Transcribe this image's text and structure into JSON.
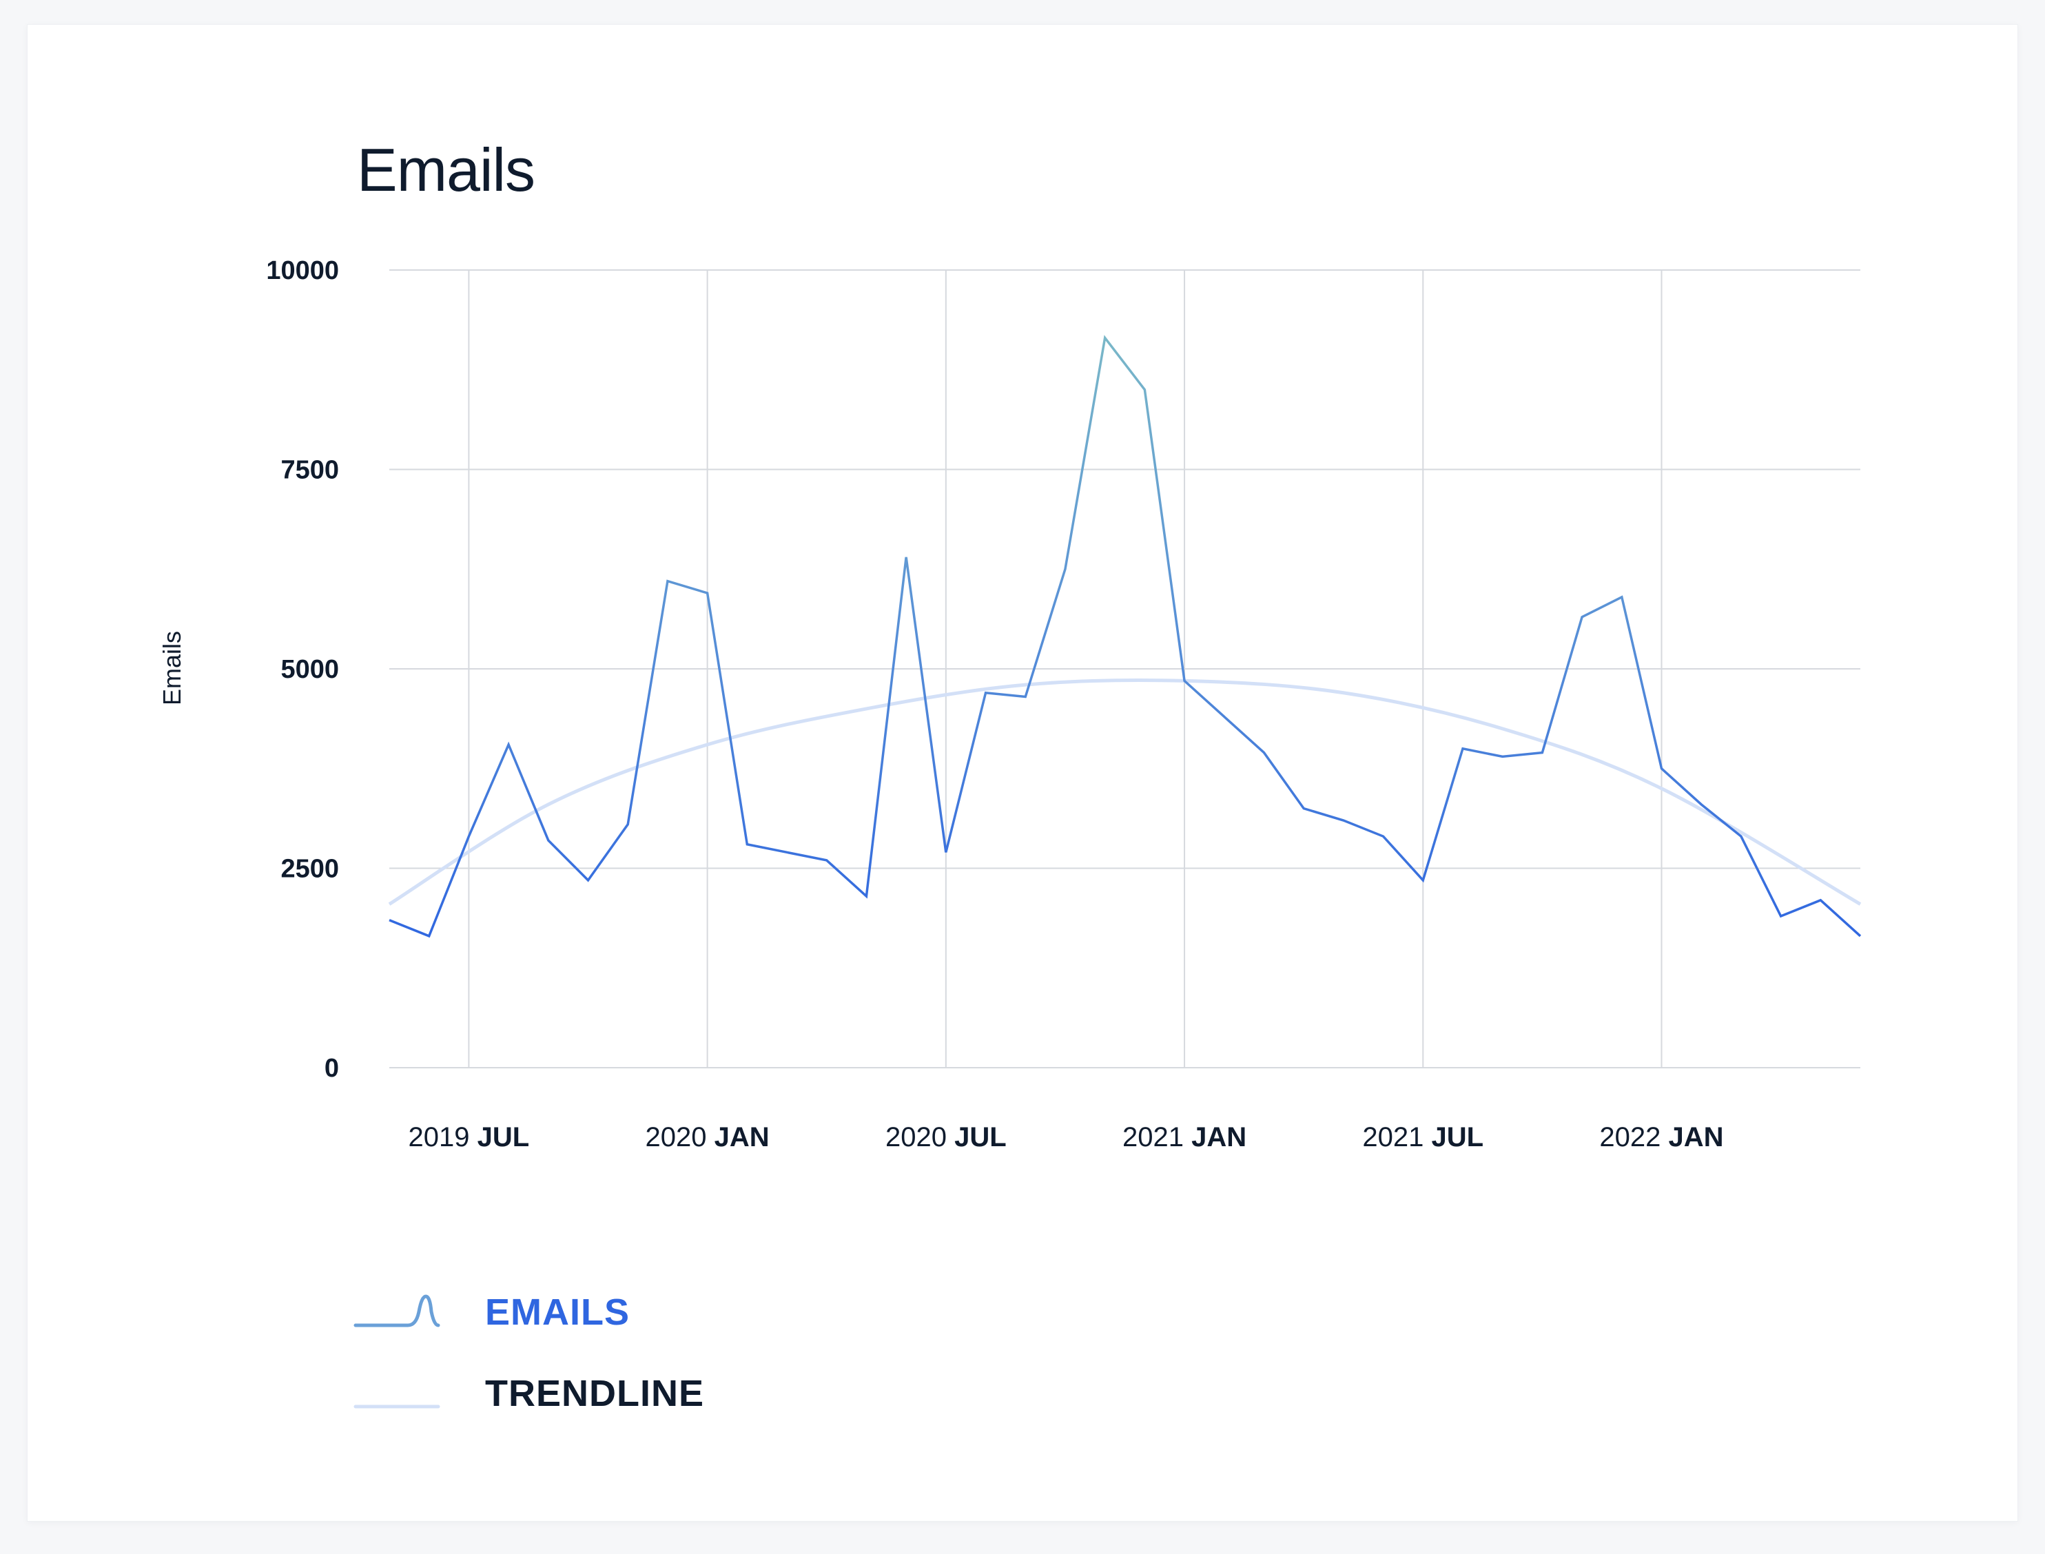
{
  "colors": {
    "series": "#2f66e0",
    "series_high": "#7ab8c8",
    "trendline": "#d3e0f7",
    "grid": "#d6d9de",
    "text": "#0f1b2d",
    "legend_emails": "#2f66e0"
  },
  "legend": {
    "emails_label": "EMAILS",
    "trendline_label": "TRENDLINE",
    "emails_icon": "line-wave-icon",
    "trendline_icon": "line-icon"
  },
  "chart_data": {
    "type": "line",
    "title": "Emails",
    "xlabel": "",
    "ylabel": "Emails",
    "ylim": [
      0,
      10000
    ],
    "xlim": [
      "2019-05",
      "2022-06"
    ],
    "yticks": [
      "0",
      "2500",
      "5000",
      "7500",
      "10000"
    ],
    "xticks": [
      {
        "date": "2019-07",
        "year": "2019",
        "month": "JUL"
      },
      {
        "date": "2020-01",
        "year": "2020",
        "month": "JAN"
      },
      {
        "date": "2020-07",
        "year": "2020",
        "month": "JUL"
      },
      {
        "date": "2021-01",
        "year": "2021",
        "month": "JAN"
      },
      {
        "date": "2021-07",
        "year": "2021",
        "month": "JUL"
      },
      {
        "date": "2022-01",
        "year": "2022",
        "month": "JAN"
      }
    ],
    "grid": true,
    "legend_position": "bottom-left",
    "series": [
      {
        "name": "EMAILS",
        "x": [
          "2019-05",
          "2019-06",
          "2019-07",
          "2019-08",
          "2019-09",
          "2019-10",
          "2019-11",
          "2019-12",
          "2020-01",
          "2020-02",
          "2020-03",
          "2020-04",
          "2020-05",
          "2020-06",
          "2020-07",
          "2020-08",
          "2020-09",
          "2020-10",
          "2020-11",
          "2020-12",
          "2021-01",
          "2021-02",
          "2021-03",
          "2021-04",
          "2021-05",
          "2021-06",
          "2021-07",
          "2021-08",
          "2021-09",
          "2021-10",
          "2021-11",
          "2021-12",
          "2022-01",
          "2022-02",
          "2022-03",
          "2022-04",
          "2022-05",
          "2022-06"
        ],
        "values": [
          1850,
          1650,
          2900,
          4050,
          2850,
          2350,
          3050,
          6100,
          5950,
          2800,
          2700,
          2600,
          2150,
          6400,
          2700,
          4700,
          4650,
          6250,
          9150,
          8500,
          4850,
          4400,
          3950,
          3250,
          3100,
          2900,
          2350,
          4000,
          3900,
          3950,
          5650,
          5900,
          3750,
          3300,
          2900,
          1900,
          2100,
          1650
        ]
      },
      {
        "name": "TRENDLINE",
        "x": [
          "2019-05",
          "2019-09",
          "2020-01",
          "2020-05",
          "2020-09",
          "2021-01",
          "2021-05",
          "2021-09",
          "2022-01",
          "2022-06"
        ],
        "values": [
          2050,
          3300,
          4050,
          4500,
          4800,
          4850,
          4700,
          4250,
          3500,
          2050
        ]
      }
    ]
  }
}
